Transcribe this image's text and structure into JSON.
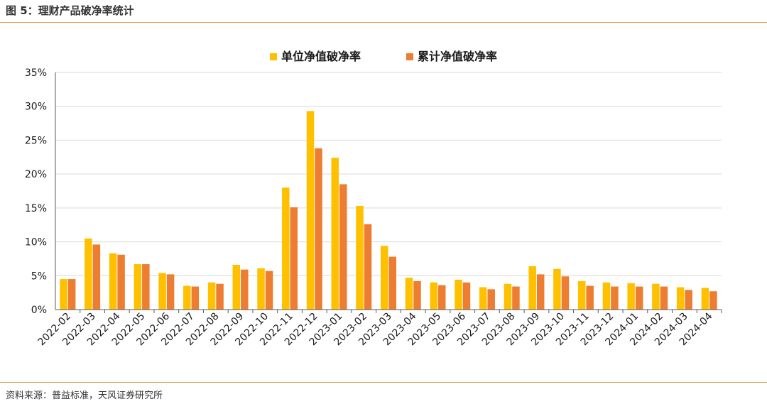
{
  "figure_title": "图 5：理财产品破净率统计",
  "source": "资料来源：普益标准，天风证券研究所",
  "colors": {
    "series1": "#FFC000",
    "series2": "#ED7D31",
    "grid": "#d9d9d9",
    "axis": "#595959",
    "rule": "#E3974D"
  },
  "chart_data": {
    "type": "bar",
    "categories": [
      "2022-02",
      "2022-03",
      "2022-04",
      "2022-05",
      "2022-06",
      "2022-07",
      "2022-08",
      "2022-09",
      "2022-10",
      "2022-11",
      "2022-12",
      "2023-01",
      "2023-02",
      "2023-03",
      "2023-04",
      "2023-05",
      "2023-06",
      "2023-07",
      "2023-08",
      "2023-09",
      "2023-10",
      "2023-11",
      "2023-12",
      "2024-01",
      "2024-02",
      "2024-03",
      "2024-04"
    ],
    "series": [
      {
        "name": "单位净值破净率",
        "color": "#FFC000",
        "values": [
          4.5,
          10.5,
          8.3,
          6.7,
          5.4,
          3.5,
          4.0,
          6.6,
          6.1,
          18.0,
          29.3,
          22.4,
          15.3,
          9.4,
          4.7,
          4.0,
          4.4,
          3.3,
          3.8,
          6.4,
          6.0,
          4.2,
          4.0,
          3.9,
          3.8,
          3.3,
          3.2
        ]
      },
      {
        "name": "累计净值破净率",
        "color": "#ED7D31",
        "values": [
          4.5,
          9.6,
          8.1,
          6.7,
          5.2,
          3.4,
          3.8,
          5.9,
          5.7,
          15.1,
          23.8,
          18.5,
          12.6,
          7.8,
          4.2,
          3.6,
          4.0,
          3.0,
          3.4,
          5.2,
          4.9,
          3.5,
          3.4,
          3.4,
          3.4,
          2.9,
          2.7
        ]
      }
    ],
    "y_ticks": [
      "0%",
      "5%",
      "10%",
      "15%",
      "20%",
      "25%",
      "30%",
      "35%"
    ],
    "ylim": [
      0,
      35
    ],
    "ylabel": "",
    "xlabel": "",
    "grid": true,
    "legend_position": "top-center"
  }
}
